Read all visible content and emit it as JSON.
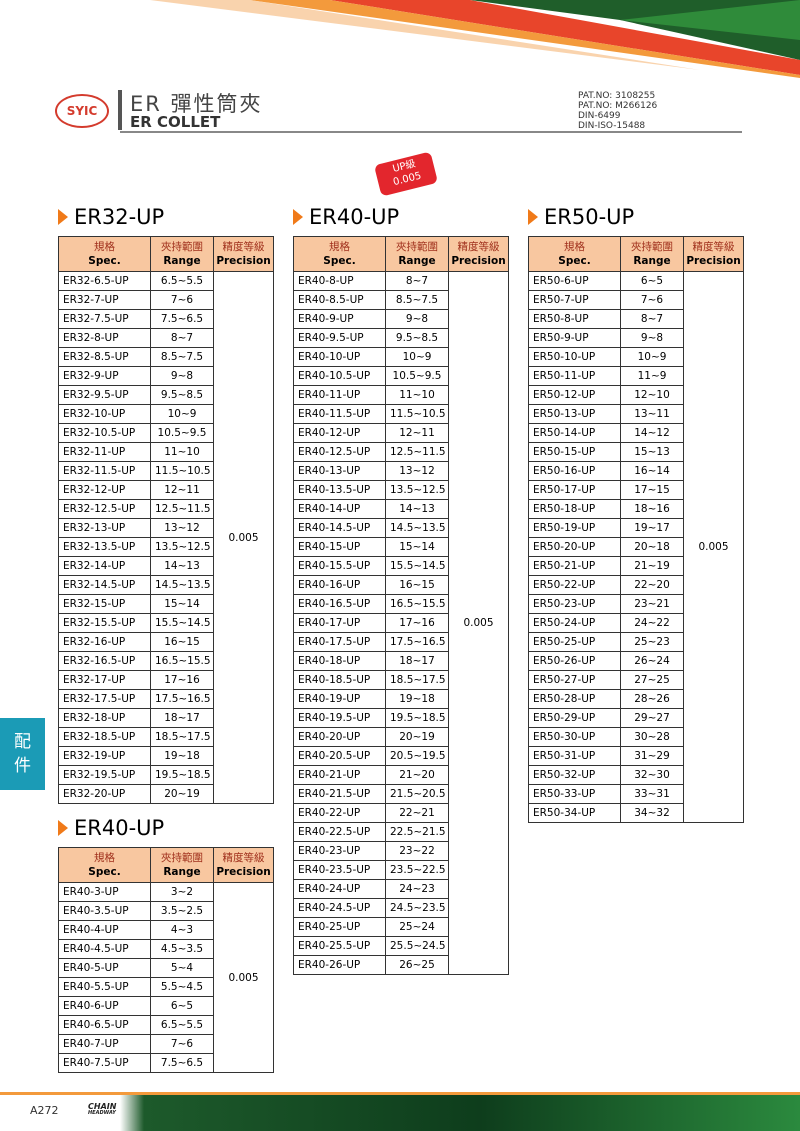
{
  "header": {
    "logo": "SYIC",
    "title_cn": "ER 彈性筒夾",
    "title_en": "ER COLLET",
    "patents": [
      "PAT.NO: 3108255",
      "PAT.NO: M266126",
      "DIN-6499",
      "DIN-ISO-15488"
    ]
  },
  "badge": {
    "line1": "UP級",
    "line2": "0.005"
  },
  "side_tab": [
    "配",
    "件"
  ],
  "tables": [
    {
      "title": "ER32-UP",
      "headers": [
        [
          "規格",
          "Spec."
        ],
        [
          "夾持範圍",
          "Range"
        ],
        [
          "精度等級",
          "Precision"
        ]
      ],
      "precision": "0.005",
      "rows": [
        [
          "ER32-6.5-UP",
          "6.5~5.5"
        ],
        [
          "ER32-7-UP",
          "7~6"
        ],
        [
          "ER32-7.5-UP",
          "7.5~6.5"
        ],
        [
          "ER32-8-UP",
          "8~7"
        ],
        [
          "ER32-8.5-UP",
          "8.5~7.5"
        ],
        [
          "ER32-9-UP",
          "9~8"
        ],
        [
          "ER32-9.5-UP",
          "9.5~8.5"
        ],
        [
          "ER32-10-UP",
          "10~9"
        ],
        [
          "ER32-10.5-UP",
          "10.5~9.5"
        ],
        [
          "ER32-11-UP",
          "11~10"
        ],
        [
          "ER32-11.5-UP",
          "11.5~10.5"
        ],
        [
          "ER32-12-UP",
          "12~11"
        ],
        [
          "ER32-12.5-UP",
          "12.5~11.5"
        ],
        [
          "ER32-13-UP",
          "13~12"
        ],
        [
          "ER32-13.5-UP",
          "13.5~12.5"
        ],
        [
          "ER32-14-UP",
          "14~13"
        ],
        [
          "ER32-14.5-UP",
          "14.5~13.5"
        ],
        [
          "ER32-15-UP",
          "15~14"
        ],
        [
          "ER32-15.5-UP",
          "15.5~14.5"
        ],
        [
          "ER32-16-UP",
          "16~15"
        ],
        [
          "ER32-16.5-UP",
          "16.5~15.5"
        ],
        [
          "ER32-17-UP",
          "17~16"
        ],
        [
          "ER32-17.5-UP",
          "17.5~16.5"
        ],
        [
          "ER32-18-UP",
          "18~17"
        ],
        [
          "ER32-18.5-UP",
          "18.5~17.5"
        ],
        [
          "ER32-19-UP",
          "19~18"
        ],
        [
          "ER32-19.5-UP",
          "19.5~18.5"
        ],
        [
          "ER32-20-UP",
          "20~19"
        ]
      ]
    },
    {
      "title": "ER40-UP",
      "headers": [
        [
          "規格",
          "Spec."
        ],
        [
          "夾持範圍",
          "Range"
        ],
        [
          "精度等級",
          "Precision"
        ]
      ],
      "precision": "0.005",
      "rows": [
        [
          "ER40-3-UP",
          "3~2"
        ],
        [
          "ER40-3.5-UP",
          "3.5~2.5"
        ],
        [
          "ER40-4-UP",
          "4~3"
        ],
        [
          "ER40-4.5-UP",
          "4.5~3.5"
        ],
        [
          "ER40-5-UP",
          "5~4"
        ],
        [
          "ER40-5.5-UP",
          "5.5~4.5"
        ],
        [
          "ER40-6-UP",
          "6~5"
        ],
        [
          "ER40-6.5-UP",
          "6.5~5.5"
        ],
        [
          "ER40-7-UP",
          "7~6"
        ],
        [
          "ER40-7.5-UP",
          "7.5~6.5"
        ]
      ]
    },
    {
      "title": "ER40-UP",
      "headers": [
        [
          "規格",
          "Spec."
        ],
        [
          "夾持範圍",
          "Range"
        ],
        [
          "精度等級",
          "Precision"
        ]
      ],
      "precision": "0.005",
      "rows": [
        [
          "ER40-8-UP",
          "8~7"
        ],
        [
          "ER40-8.5-UP",
          "8.5~7.5"
        ],
        [
          "ER40-9-UP",
          "9~8"
        ],
        [
          "ER40-9.5-UP",
          "9.5~8.5"
        ],
        [
          "ER40-10-UP",
          "10~9"
        ],
        [
          "ER40-10.5-UP",
          "10.5~9.5"
        ],
        [
          "ER40-11-UP",
          "11~10"
        ],
        [
          "ER40-11.5-UP",
          "11.5~10.5"
        ],
        [
          "ER40-12-UP",
          "12~11"
        ],
        [
          "ER40-12.5-UP",
          "12.5~11.5"
        ],
        [
          "ER40-13-UP",
          "13~12"
        ],
        [
          "ER40-13.5-UP",
          "13.5~12.5"
        ],
        [
          "ER40-14-UP",
          "14~13"
        ],
        [
          "ER40-14.5-UP",
          "14.5~13.5"
        ],
        [
          "ER40-15-UP",
          "15~14"
        ],
        [
          "ER40-15.5-UP",
          "15.5~14.5"
        ],
        [
          "ER40-16-UP",
          "16~15"
        ],
        [
          "ER40-16.5-UP",
          "16.5~15.5"
        ],
        [
          "ER40-17-UP",
          "17~16"
        ],
        [
          "ER40-17.5-UP",
          "17.5~16.5"
        ],
        [
          "ER40-18-UP",
          "18~17"
        ],
        [
          "ER40-18.5-UP",
          "18.5~17.5"
        ],
        [
          "ER40-19-UP",
          "19~18"
        ],
        [
          "ER40-19.5-UP",
          "19.5~18.5"
        ],
        [
          "ER40-20-UP",
          "20~19"
        ],
        [
          "ER40-20.5-UP",
          "20.5~19.5"
        ],
        [
          "ER40-21-UP",
          "21~20"
        ],
        [
          "ER40-21.5-UP",
          "21.5~20.5"
        ],
        [
          "ER40-22-UP",
          "22~21"
        ],
        [
          "ER40-22.5-UP",
          "22.5~21.5"
        ],
        [
          "ER40-23-UP",
          "23~22"
        ],
        [
          "ER40-23.5-UP",
          "23.5~22.5"
        ],
        [
          "ER40-24-UP",
          "24~23"
        ],
        [
          "ER40-24.5-UP",
          "24.5~23.5"
        ],
        [
          "ER40-25-UP",
          "25~24"
        ],
        [
          "ER40-25.5-UP",
          "25.5~24.5"
        ],
        [
          "ER40-26-UP",
          "26~25"
        ]
      ]
    },
    {
      "title": "ER50-UP",
      "headers": [
        [
          "規格",
          "Spec."
        ],
        [
          "夾持範圍",
          "Range"
        ],
        [
          "精度等級",
          "Precision"
        ]
      ],
      "precision": "0.005",
      "rows": [
        [
          "ER50-6-UP",
          "6~5"
        ],
        [
          "ER50-7-UP",
          "7~6"
        ],
        [
          "ER50-8-UP",
          "8~7"
        ],
        [
          "ER50-9-UP",
          "9~8"
        ],
        [
          "ER50-10-UP",
          "10~9"
        ],
        [
          "ER50-11-UP",
          "11~9"
        ],
        [
          "ER50-12-UP",
          "12~10"
        ],
        [
          "ER50-13-UP",
          "13~11"
        ],
        [
          "ER50-14-UP",
          "14~12"
        ],
        [
          "ER50-15-UP",
          "15~13"
        ],
        [
          "ER50-16-UP",
          "16~14"
        ],
        [
          "ER50-17-UP",
          "17~15"
        ],
        [
          "ER50-18-UP",
          "18~16"
        ],
        [
          "ER50-19-UP",
          "19~17"
        ],
        [
          "ER50-20-UP",
          "20~18"
        ],
        [
          "ER50-21-UP",
          "21~19"
        ],
        [
          "ER50-22-UP",
          "22~20"
        ],
        [
          "ER50-23-UP",
          "23~21"
        ],
        [
          "ER50-24-UP",
          "24~22"
        ],
        [
          "ER50-25-UP",
          "25~23"
        ],
        [
          "ER50-26-UP",
          "26~24"
        ],
        [
          "ER50-27-UP",
          "27~25"
        ],
        [
          "ER50-28-UP",
          "28~26"
        ],
        [
          "ER50-29-UP",
          "29~27"
        ],
        [
          "ER50-30-UP",
          "30~28"
        ],
        [
          "ER50-31-UP",
          "31~29"
        ],
        [
          "ER50-32-UP",
          "32~30"
        ],
        [
          "ER50-33-UP",
          "33~31"
        ],
        [
          "ER50-34-UP",
          "34~32"
        ]
      ]
    }
  ],
  "footer": {
    "page": "A272",
    "brand": [
      "CHAIN",
      "HEADWAY"
    ]
  }
}
